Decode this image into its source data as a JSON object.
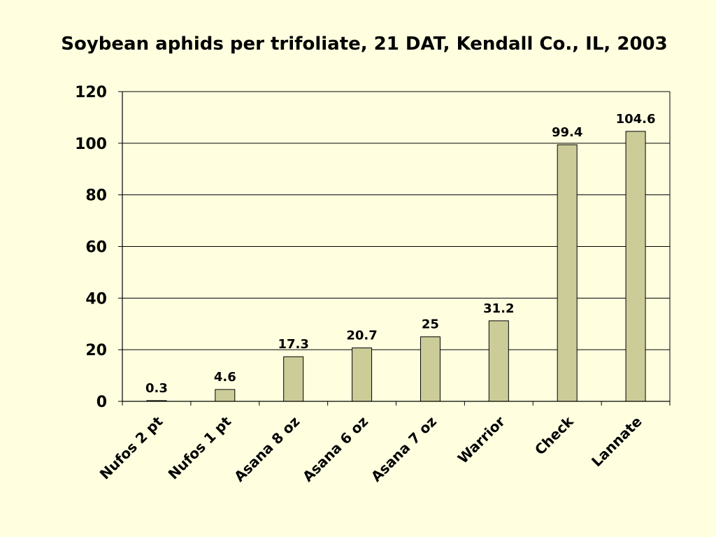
{
  "chart_data": {
    "type": "bar",
    "title": "Soybean aphids per trifoliate, 21 DAT, Kendall Co., IL, 2003",
    "xlabel": "",
    "ylabel": "",
    "categories": [
      "Nufos 2 pt",
      "Nufos 1 pt",
      "Asana 8 oz",
      "Asana 6 oz",
      "Asana 7 oz",
      "Warrior",
      "Check",
      "Lannate"
    ],
    "values": [
      0.3,
      4.6,
      17.3,
      20.7,
      25,
      31.2,
      99.4,
      104.6
    ],
    "data_labels": [
      "0.3",
      "4.6",
      "17.3",
      "20.7",
      "25",
      "31.2",
      "99.4",
      "104.6"
    ],
    "ylim": [
      0,
      120
    ],
    "yticks": [
      0,
      20,
      40,
      60,
      80,
      100,
      120
    ],
    "ytick_labels": [
      "0",
      "20",
      "40",
      "60",
      "80",
      "100",
      "120"
    ],
    "grid": true,
    "legend": "none",
    "colors": {
      "background": "#ffffe0",
      "bar_fill": "#cccc99",
      "bar_stroke": "#000000",
      "grid": "#000000"
    }
  }
}
